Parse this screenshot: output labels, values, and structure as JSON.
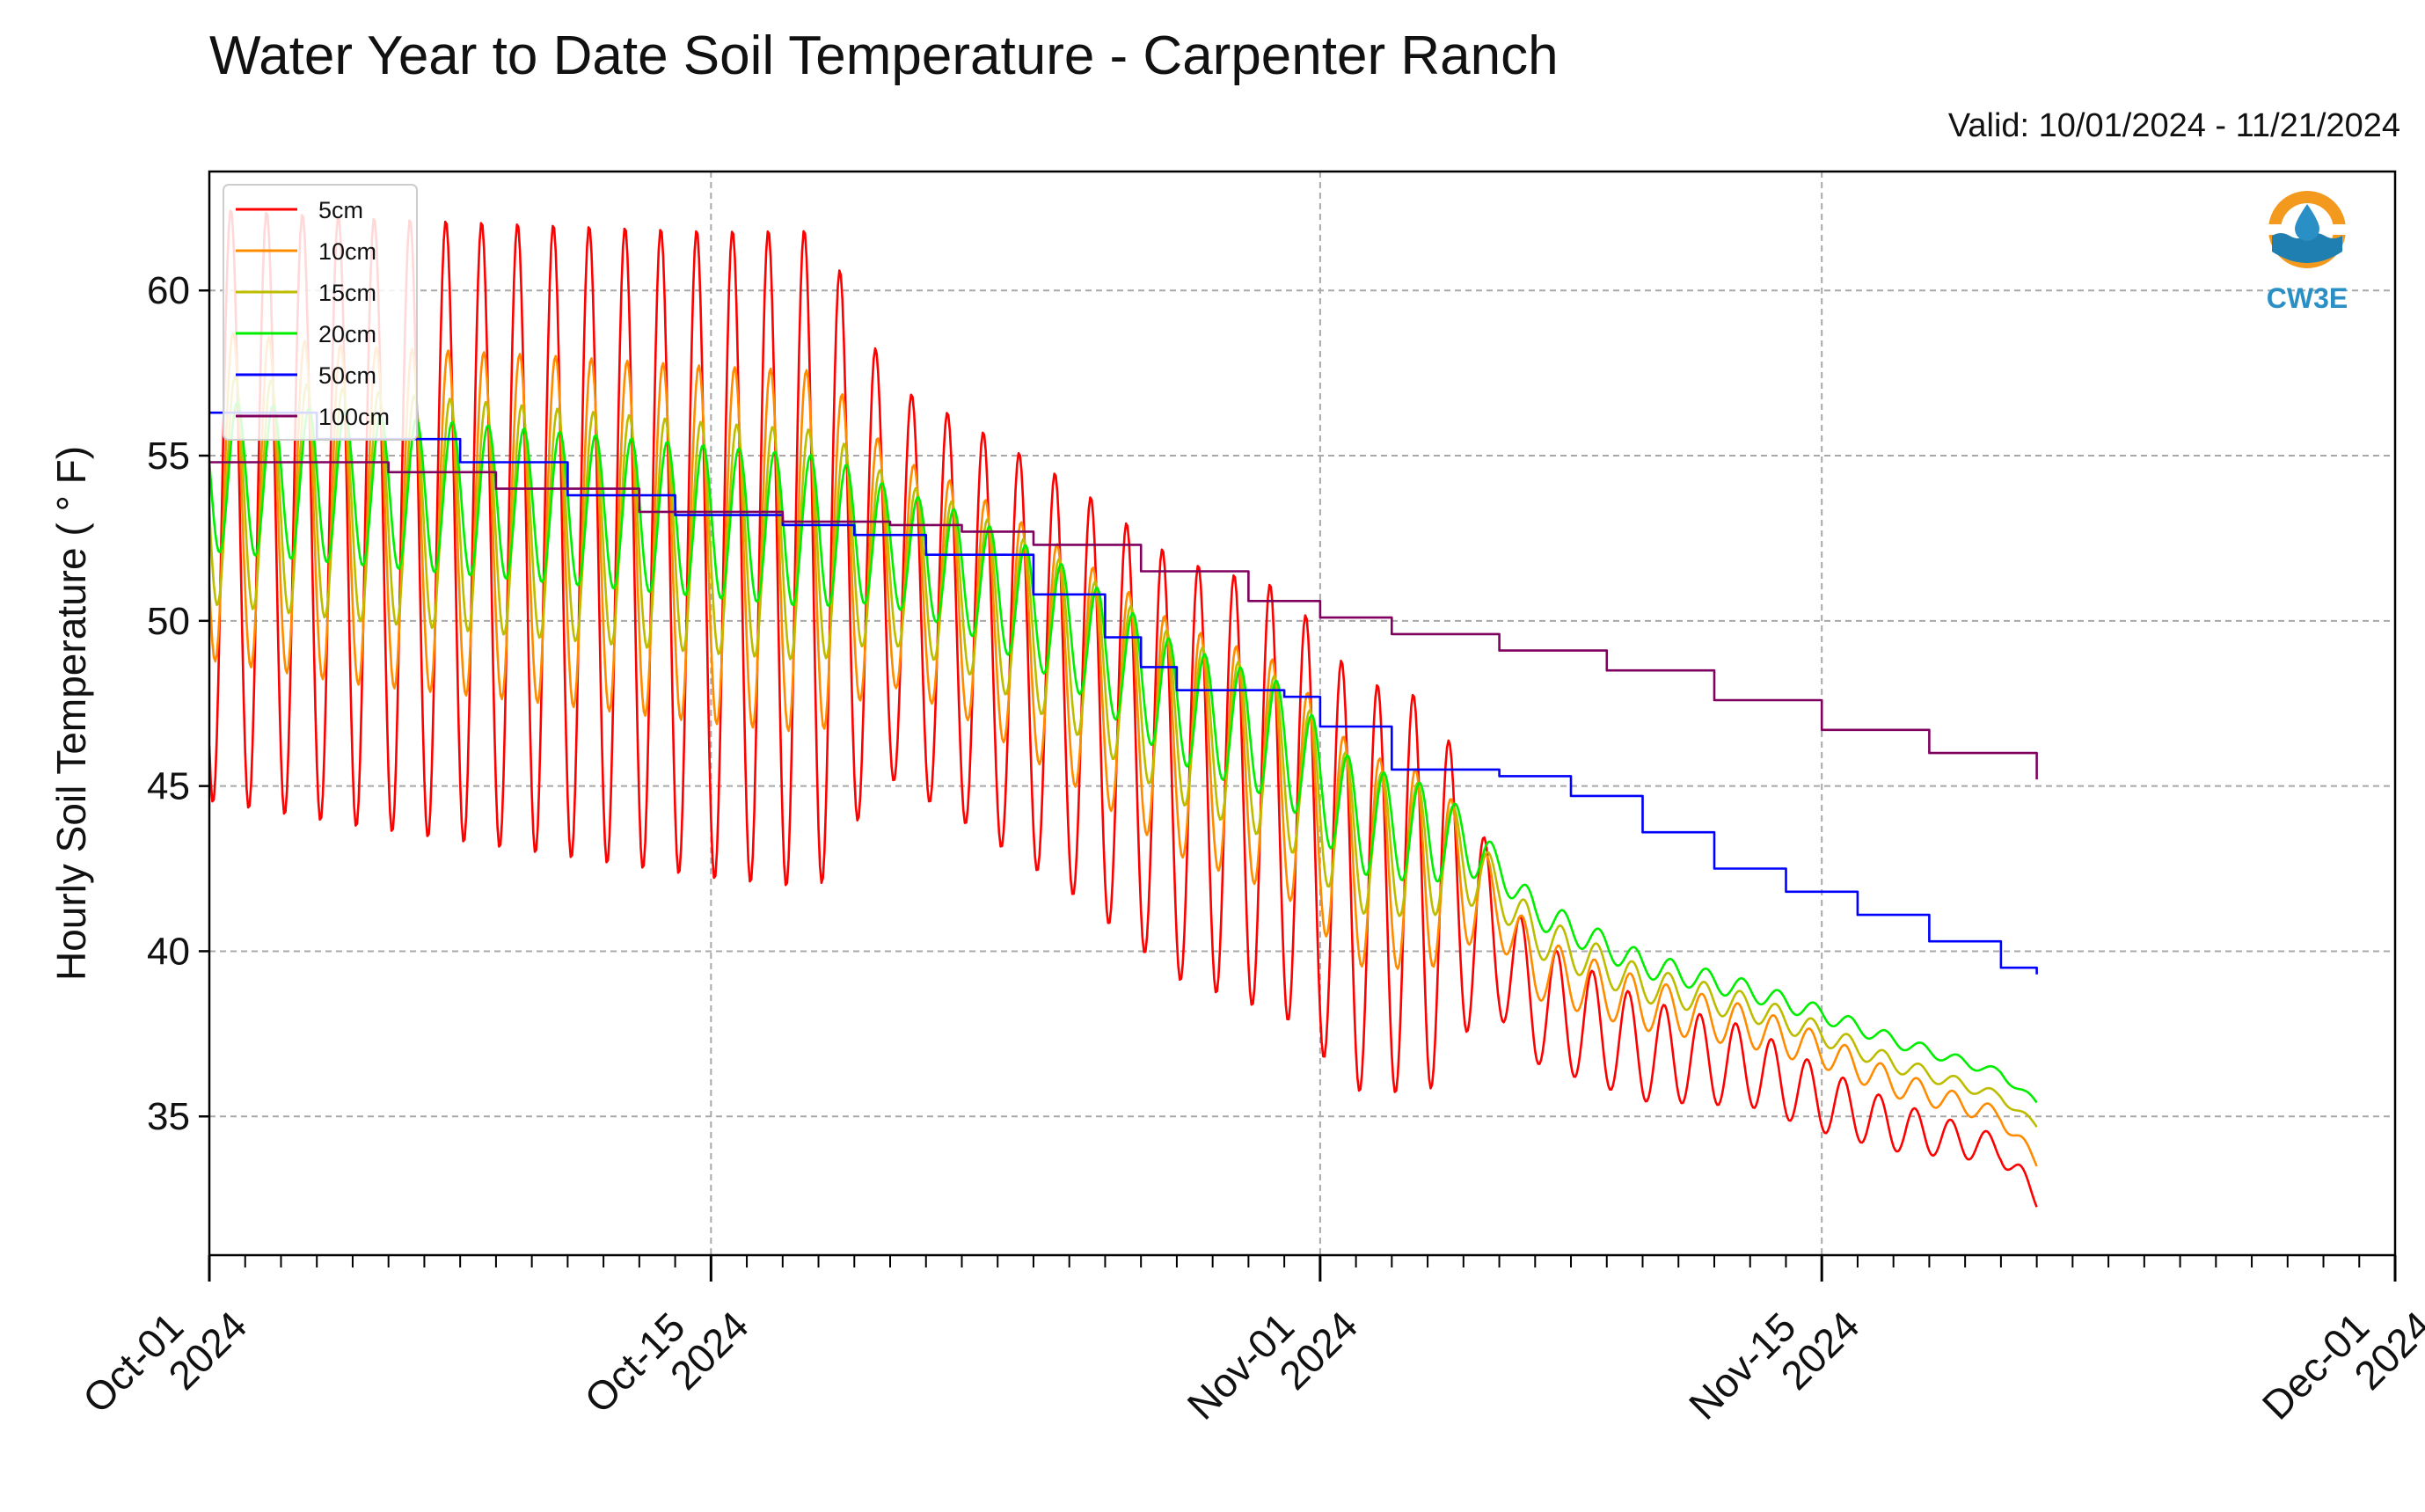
{
  "title": "Water Year to Date Soil Temperature - Carpenter Ranch",
  "subtitle": "Valid: 10/01/2024 - 11/21/2024",
  "logo_text": "CW3E",
  "chart_data": {
    "type": "line",
    "title": "Water Year to Date Soil Temperature - Carpenter Ranch",
    "ylabel": "Hourly Soil Temperature ( ° F)",
    "xlabel": "",
    "ylim": [
      30.8,
      63.6
    ],
    "xlim": [
      "2024-10-01",
      "2024-12-01"
    ],
    "x_ticks": [
      {
        "date": "2024-10-01",
        "label": "Oct-01\n2024"
      },
      {
        "date": "2024-10-15",
        "label": "Oct-15\n2024"
      },
      {
        "date": "2024-11-01",
        "label": "Nov-01\n2024"
      },
      {
        "date": "2024-11-15",
        "label": "Nov-15\n2024"
      },
      {
        "date": "2024-12-01",
        "label": "Dec-01\n2024"
      }
    ],
    "y_ticks": [
      35,
      40,
      45,
      50,
      55,
      60
    ],
    "grid": true,
    "legend_position": "top-left",
    "data_end_date": "2024-11-21",
    "series": [
      {
        "name": "5cm",
        "color": "#ff0000",
        "type": "diurnal",
        "points": [
          [
            "2024-10-01",
            53.5
          ],
          [
            "2024-10-05",
            53.0
          ],
          [
            "2024-10-10",
            52.5
          ],
          [
            "2024-10-15",
            52.0
          ],
          [
            "2024-10-19",
            51.8
          ],
          [
            "2024-10-22",
            50.0
          ],
          [
            "2024-10-25",
            48.0
          ],
          [
            "2024-10-28",
            45.5
          ],
          [
            "2024-10-31",
            44.5
          ],
          [
            "2024-11-02",
            42.0
          ],
          [
            "2024-11-05",
            41.5
          ],
          [
            "2024-11-06",
            40.0
          ],
          [
            "2024-11-07",
            38.5
          ],
          [
            "2024-11-10",
            37.0
          ],
          [
            "2024-11-13",
            36.5
          ],
          [
            "2024-11-15",
            35.5
          ],
          [
            "2024-11-17",
            34.7
          ],
          [
            "2024-11-20",
            34.0
          ],
          [
            "2024-11-21",
            32.5
          ]
        ],
        "amplitude": [
          [
            "2024-10-01",
            9.0
          ],
          [
            "2024-10-18",
            10.0
          ],
          [
            "2024-10-20",
            6.0
          ],
          [
            "2024-10-31",
            6.5
          ],
          [
            "2024-11-04",
            6.0
          ],
          [
            "2024-11-06",
            2.0
          ],
          [
            "2024-11-21",
            0.3
          ]
        ]
      },
      {
        "name": "10cm",
        "color": "#ff8c00",
        "type": "diurnal",
        "points": [
          [
            "2024-10-01",
            53.8
          ],
          [
            "2024-10-05",
            53.2
          ],
          [
            "2024-10-10",
            52.8
          ],
          [
            "2024-10-15",
            52.3
          ],
          [
            "2024-10-19",
            52.0
          ],
          [
            "2024-10-22",
            50.6
          ],
          [
            "2024-10-25",
            48.6
          ],
          [
            "2024-10-28",
            46.4
          ],
          [
            "2024-10-31",
            45.2
          ],
          [
            "2024-11-02",
            42.8
          ],
          [
            "2024-11-05",
            42.2
          ],
          [
            "2024-11-06",
            41.2
          ],
          [
            "2024-11-07",
            39.5
          ],
          [
            "2024-11-10",
            38.4
          ],
          [
            "2024-11-13",
            37.7
          ],
          [
            "2024-11-15",
            37.0
          ],
          [
            "2024-11-17",
            36.0
          ],
          [
            "2024-11-20",
            35.0
          ],
          [
            "2024-11-21",
            33.6
          ]
        ],
        "amplitude": [
          [
            "2024-10-01",
            5.0
          ],
          [
            "2024-10-18",
            5.5
          ],
          [
            "2024-10-20",
            3.5
          ],
          [
            "2024-10-31",
            3.5
          ],
          [
            "2024-11-04",
            3.0
          ],
          [
            "2024-11-06",
            1.0
          ],
          [
            "2024-11-21",
            0.2
          ]
        ]
      },
      {
        "name": "15cm",
        "color": "#bdbd00",
        "type": "diurnal",
        "points": [
          [
            "2024-10-01",
            54.0
          ],
          [
            "2024-10-05",
            53.5
          ],
          [
            "2024-10-10",
            53.0
          ],
          [
            "2024-10-15",
            52.5
          ],
          [
            "2024-10-19",
            52.2
          ],
          [
            "2024-10-22",
            51.0
          ],
          [
            "2024-10-25",
            49.2
          ],
          [
            "2024-10-28",
            47.0
          ],
          [
            "2024-10-31",
            45.7
          ],
          [
            "2024-11-02",
            43.4
          ],
          [
            "2024-11-05",
            42.8
          ],
          [
            "2024-11-06",
            41.8
          ],
          [
            "2024-11-07",
            40.5
          ],
          [
            "2024-11-10",
            39.0
          ],
          [
            "2024-11-13",
            38.3
          ],
          [
            "2024-11-15",
            37.5
          ],
          [
            "2024-11-17",
            36.6
          ],
          [
            "2024-11-20",
            35.6
          ],
          [
            "2024-11-21",
            34.7
          ]
        ],
        "amplitude": [
          [
            "2024-10-01",
            3.5
          ],
          [
            "2024-10-18",
            3.5
          ],
          [
            "2024-10-20",
            2.5
          ],
          [
            "2024-10-31",
            2.5
          ],
          [
            "2024-11-04",
            2.0
          ],
          [
            "2024-11-06",
            0.7
          ],
          [
            "2024-11-21",
            0.1
          ]
        ]
      },
      {
        "name": "20cm",
        "color": "#00ee00",
        "type": "diurnal",
        "points": [
          [
            "2024-10-01",
            54.4
          ],
          [
            "2024-10-05",
            54.0
          ],
          [
            "2024-10-10",
            53.5
          ],
          [
            "2024-10-15",
            53.0
          ],
          [
            "2024-10-19",
            52.6
          ],
          [
            "2024-10-22",
            51.5
          ],
          [
            "2024-10-25",
            49.8
          ],
          [
            "2024-10-28",
            47.5
          ],
          [
            "2024-10-31",
            46.3
          ],
          [
            "2024-11-02",
            44.0
          ],
          [
            "2024-11-05",
            43.3
          ],
          [
            "2024-11-06",
            42.5
          ],
          [
            "2024-11-07",
            41.2
          ],
          [
            "2024-11-10",
            39.6
          ],
          [
            "2024-11-13",
            38.8
          ],
          [
            "2024-11-15",
            38.1
          ],
          [
            "2024-11-17",
            37.3
          ],
          [
            "2024-11-20",
            36.3
          ],
          [
            "2024-11-21",
            35.4
          ]
        ],
        "amplitude": [
          [
            "2024-10-01",
            2.3
          ],
          [
            "2024-10-18",
            2.3
          ],
          [
            "2024-10-20",
            1.8
          ],
          [
            "2024-10-31",
            1.8
          ],
          [
            "2024-11-04",
            1.5
          ],
          [
            "2024-11-06",
            0.5
          ],
          [
            "2024-11-21",
            0.1
          ]
        ]
      },
      {
        "name": "50cm",
        "color": "#0000ff",
        "type": "steps",
        "points": [
          [
            "2024-10-01",
            56.3
          ],
          [
            "2024-10-04",
            55.5
          ],
          [
            "2024-10-08",
            54.8
          ],
          [
            "2024-10-11",
            53.8
          ],
          [
            "2024-10-14",
            53.2
          ],
          [
            "2024-10-17",
            52.9
          ],
          [
            "2024-10-19",
            52.6
          ],
          [
            "2024-10-21",
            52.0
          ],
          [
            "2024-10-24",
            50.8
          ],
          [
            "2024-10-26",
            49.5
          ],
          [
            "2024-10-27",
            48.6
          ],
          [
            "2024-10-28",
            47.9
          ],
          [
            "2024-10-31",
            47.7
          ],
          [
            "2024-11-01",
            46.8
          ],
          [
            "2024-11-03",
            45.5
          ],
          [
            "2024-11-06",
            45.3
          ],
          [
            "2024-11-08",
            44.7
          ],
          [
            "2024-11-10",
            43.6
          ],
          [
            "2024-11-12",
            42.5
          ],
          [
            "2024-11-14",
            41.8
          ],
          [
            "2024-11-16",
            41.1
          ],
          [
            "2024-11-18",
            40.3
          ],
          [
            "2024-11-20",
            39.5
          ],
          [
            "2024-11-21",
            39.3
          ]
        ]
      },
      {
        "name": "100cm",
        "color": "#800060",
        "type": "steps",
        "points": [
          [
            "2024-10-01",
            54.8
          ],
          [
            "2024-10-06",
            54.5
          ],
          [
            "2024-10-09",
            54.0
          ],
          [
            "2024-10-13",
            53.3
          ],
          [
            "2024-10-17",
            53.0
          ],
          [
            "2024-10-20",
            52.9
          ],
          [
            "2024-10-22",
            52.7
          ],
          [
            "2024-10-24",
            52.3
          ],
          [
            "2024-10-27",
            51.5
          ],
          [
            "2024-10-30",
            50.6
          ],
          [
            "2024-11-01",
            50.1
          ],
          [
            "2024-11-03",
            49.6
          ],
          [
            "2024-11-06",
            49.1
          ],
          [
            "2024-11-09",
            48.5
          ],
          [
            "2024-11-12",
            47.6
          ],
          [
            "2024-11-15",
            46.7
          ],
          [
            "2024-11-18",
            46.0
          ],
          [
            "2024-11-21",
            45.2
          ]
        ]
      }
    ]
  }
}
